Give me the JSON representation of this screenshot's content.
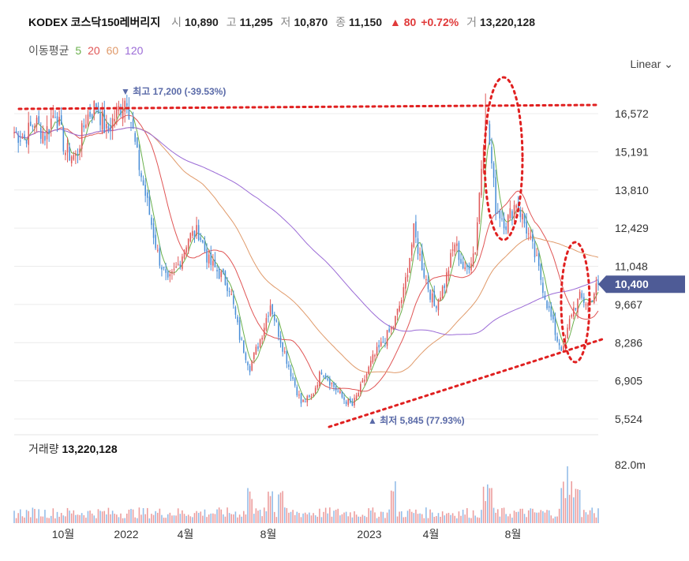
{
  "header": {
    "name": "KODEX 코스닥150레버리지",
    "open_label": "시",
    "open": "10,890",
    "high_label": "고",
    "high": "11,295",
    "low_label": "저",
    "low": "10,870",
    "close_label": "종",
    "close": "11,150",
    "change": "▲ 80",
    "change_pct": "+0.72%",
    "volume_label": "거",
    "volume": "13,220,128"
  },
  "ma": {
    "label": "이동평균",
    "periods": [
      {
        "value": "5",
        "color": "#6ab04c"
      },
      {
        "value": "20",
        "color": "#e05555"
      },
      {
        "value": "60",
        "color": "#e09a6a"
      },
      {
        "value": "120",
        "color": "#9b6bd6"
      }
    ]
  },
  "scale_button": "Linear",
  "volume_panel": {
    "label": "거래량",
    "value": "13,220,128",
    "tick": "82.0m"
  },
  "colors": {
    "up": "#e05a5a",
    "down": "#4a8fd8",
    "current_bg": "#4e5b96",
    "annot": "#e02020",
    "marker": "#5a6aa8"
  },
  "chart_data": {
    "type": "candlestick",
    "title": "KODEX 코스닥150레버리지",
    "y_ticks": [
      16572,
      15191,
      13810,
      12429,
      11048,
      9667,
      8286,
      6905,
      5524
    ],
    "y_tick_labels": [
      "16,572",
      "15,191",
      "13,810",
      "12,429",
      "11,048",
      "9,667",
      "8,286",
      "6,905",
      "5,524"
    ],
    "ylim": [
      5524,
      17500
    ],
    "x_tick_labels": [
      "10월",
      "2022",
      "4월",
      "8월",
      "2023",
      "4월",
      "8월"
    ],
    "current_price": 10400,
    "current_price_label": "10,400",
    "high_marker": {
      "label": "▼ 최고",
      "value": "17,200",
      "pct": "(-39.53%)"
    },
    "low_marker": {
      "label": "▲ 최저",
      "value": "5,845",
      "pct": "(77.93%)"
    },
    "price_path": [
      [
        0,
        15900
      ],
      [
        5,
        15700
      ],
      [
        10,
        16300
      ],
      [
        15,
        15800
      ],
      [
        20,
        16700
      ],
      [
        25,
        15200
      ],
      [
        30,
        15000
      ],
      [
        35,
        16400
      ],
      [
        40,
        16900
      ],
      [
        45,
        15900
      ],
      [
        50,
        16600
      ],
      [
        55,
        17200
      ],
      [
        60,
        15000
      ],
      [
        65,
        13300
      ],
      [
        70,
        11500
      ],
      [
        75,
        10400
      ],
      [
        80,
        11100
      ],
      [
        85,
        12100
      ],
      [
        90,
        12300
      ],
      [
        95,
        11200
      ],
      [
        100,
        10800
      ],
      [
        105,
        10300
      ],
      [
        110,
        8500
      ],
      [
        115,
        7400
      ],
      [
        120,
        8400
      ],
      [
        125,
        9700
      ],
      [
        130,
        8400
      ],
      [
        135,
        7200
      ],
      [
        140,
        6100
      ],
      [
        145,
        6300
      ],
      [
        150,
        7300
      ],
      [
        155,
        6800
      ],
      [
        160,
        6300
      ],
      [
        165,
        6000
      ],
      [
        170,
        6800
      ],
      [
        175,
        7700
      ],
      [
        180,
        8300
      ],
      [
        185,
        8900
      ],
      [
        190,
        10100
      ],
      [
        195,
        12300
      ],
      [
        200,
        10800
      ],
      [
        205,
        9600
      ],
      [
        210,
        10400
      ],
      [
        215,
        11900
      ],
      [
        220,
        10800
      ],
      [
        225,
        11700
      ],
      [
        230,
        16700
      ],
      [
        232,
        15500
      ],
      [
        235,
        13200
      ],
      [
        240,
        12600
      ],
      [
        245,
        13400
      ],
      [
        250,
        12400
      ],
      [
        255,
        11200
      ],
      [
        260,
        9700
      ],
      [
        265,
        8400
      ],
      [
        268,
        8000
      ],
      [
        272,
        9400
      ],
      [
        276,
        9900
      ],
      [
        280,
        9700
      ],
      [
        285,
        10400
      ]
    ],
    "volume_tick": "82.0m"
  }
}
